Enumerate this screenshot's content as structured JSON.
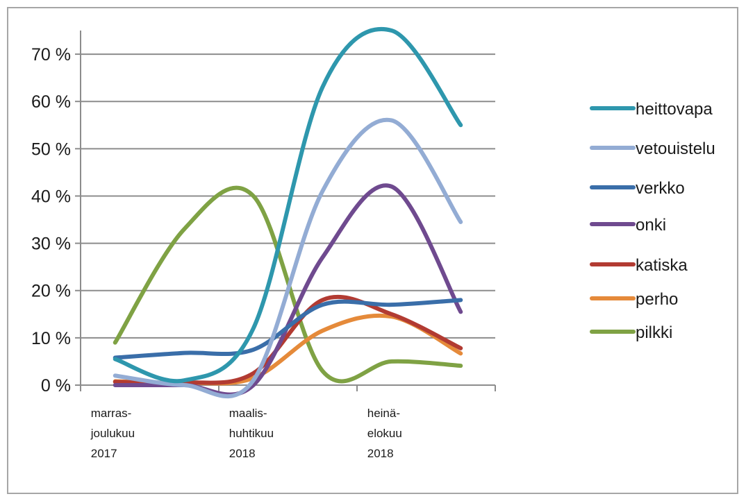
{
  "chart_data": {
    "type": "line",
    "title": "",
    "xlabel": "",
    "ylabel": "",
    "categories": [
      [
        "marras-",
        "joulukuu",
        "2017"
      ],
      [
        "",
        "",
        ""
      ],
      [
        "maalis-",
        "huhtikuu",
        "2018"
      ],
      [
        "",
        "",
        ""
      ],
      [
        "heinä-",
        "elokuu",
        "2018"
      ],
      [
        "",
        "",
        ""
      ]
    ],
    "ylim": [
      0,
      75
    ],
    "yticks": [
      0,
      10,
      20,
      30,
      40,
      50,
      60,
      70
    ],
    "ytick_labels": [
      "0 %",
      "10 %",
      "20 %",
      "30 %",
      "40 %",
      "50 %",
      "60 %",
      "70 %"
    ],
    "grid": true,
    "legend_position": "right",
    "series": [
      {
        "name": "heittovapa",
        "color": "#2e97ad",
        "values": [
          5.5,
          1,
          12,
          63,
          75,
          55
        ]
      },
      {
        "name": "vetouistelu",
        "color": "#93acd4",
        "values": [
          2,
          0,
          1,
          41,
          56,
          34.5
        ]
      },
      {
        "name": "verkko",
        "color": "#3a6ea9",
        "values": [
          5.8,
          6.8,
          7.5,
          17,
          17,
          18
        ]
      },
      {
        "name": "onki",
        "color": "#6f4a8f",
        "values": [
          0,
          0,
          0,
          27,
          42,
          15.5
        ]
      },
      {
        "name": "katiska",
        "color": "#b23b32",
        "values": [
          0.7,
          0.5,
          2.5,
          18,
          15,
          7.8
        ]
      },
      {
        "name": "perho",
        "color": "#e58a3a",
        "values": [
          0.8,
          0.5,
          1.5,
          11.5,
          14.5,
          6.7
        ]
      },
      {
        "name": "pilkki",
        "color": "#7fa244",
        "values": [
          9,
          33,
          40,
          3,
          5,
          4.1
        ]
      }
    ]
  }
}
